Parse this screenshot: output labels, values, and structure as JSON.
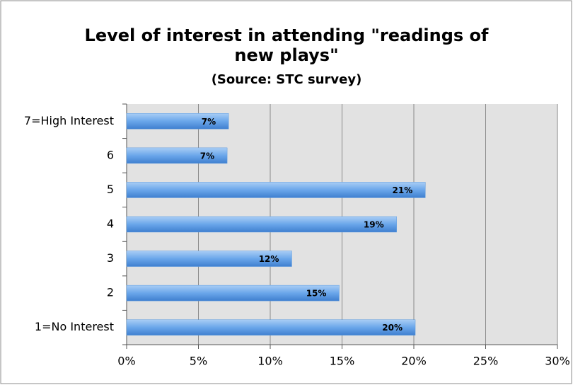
{
  "chart_data": {
    "type": "bar",
    "orientation": "horizontal",
    "title": "Level of interest in attending \"readings of new plays\"",
    "subtitle": "(Source: STC survey)",
    "categories": [
      "7=High Interest",
      "6",
      "5",
      "4",
      "3",
      "2",
      "1=No Interest"
    ],
    "values": [
      7.1,
      7.0,
      20.8,
      18.8,
      11.5,
      14.8,
      20.1
    ],
    "value_labels": [
      "7%",
      "7%",
      "21%",
      "19%",
      "12%",
      "15%",
      "20%"
    ],
    "color": "#5b9be0",
    "xlim": [
      0,
      30
    ],
    "xticks": [
      {
        "value": 0,
        "label": "0%"
      },
      {
        "value": 5,
        "label": "5%"
      },
      {
        "value": 10,
        "label": "10%"
      },
      {
        "value": 15,
        "label": "15%"
      },
      {
        "value": 20,
        "label": "20%"
      },
      {
        "value": 25,
        "label": "25%"
      },
      {
        "value": 30,
        "label": "30%"
      }
    ],
    "grid": true
  }
}
